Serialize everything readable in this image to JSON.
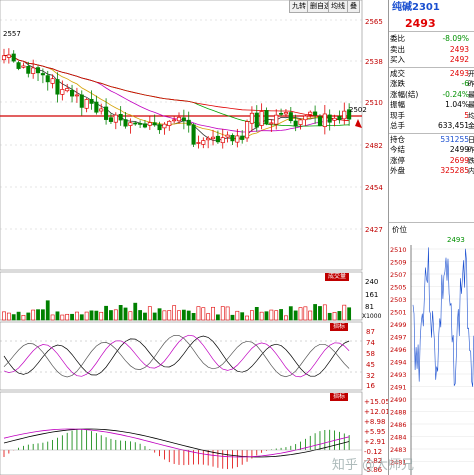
{
  "toolbar": {
    "tabs": [
      {
        "label": "九转"
      },
      {
        "label": "删自选"
      },
      {
        "label": "均线"
      },
      {
        "label": "叠"
      }
    ]
  },
  "main_chart": {
    "high_marker": "2557",
    "ref_price_marker": "2502",
    "price_axis": [
      "2565",
      "2538",
      "2510",
      "2482",
      "2454",
      "2427"
    ]
  },
  "volume_panel": {
    "tag": "成交量",
    "axis": [
      "240",
      "161",
      "81",
      "X1000"
    ]
  },
  "kdj_panel": {
    "tag": "指标",
    "axis": [
      "87",
      "74",
      "58",
      "45",
      "32",
      "16"
    ]
  },
  "macd_panel": {
    "tag": "指标",
    "axis": [
      "+15.05",
      "+12.01",
      "+8.98",
      "+5.95",
      "+2.91",
      "-0.12",
      "-2.82",
      "-5.86"
    ]
  },
  "quote": {
    "title": "纯碱2301",
    "price": "2493",
    "rows": [
      {
        "k": "委比",
        "v": "-8.09%",
        "c": "green",
        "x": ""
      },
      {
        "k": "卖出",
        "v": "2493",
        "c": "red",
        "x": ""
      },
      {
        "k": "买入",
        "v": "2492",
        "c": "red",
        "x": ""
      },
      {
        "k": "成交",
        "v": "2493",
        "c": "red",
        "x": "开"
      },
      {
        "k": "涨跌",
        "v": "-6",
        "c": "green",
        "x": "昨"
      },
      {
        "k": "涨幅(结)",
        "v": "-0.24%",
        "c": "green",
        "x": "最"
      },
      {
        "k": "振幅",
        "v": "1.04%",
        "c": "black",
        "x": "最"
      },
      {
        "k": "现手",
        "v": "5",
        "c": "red",
        "x": "均"
      },
      {
        "k": "总手",
        "v": "633,451",
        "c": "black",
        "x": "金"
      },
      {
        "k": "持仓",
        "v": "531255",
        "c": "blue",
        "x": "日"
      },
      {
        "k": "今结",
        "v": "2499",
        "c": "black",
        "x": "昨"
      },
      {
        "k": "涨停",
        "v": "2699",
        "c": "red",
        "x": "跌"
      },
      {
        "k": "外盘",
        "v": "325285",
        "c": "red",
        "x": "内"
      }
    ],
    "mini_label": "价位",
    "mini_price": "2493",
    "mini_axis": [
      "2510",
      "2509",
      "2507",
      "2505",
      "2503",
      "2501",
      "2499",
      "2497",
      "2496",
      "2494",
      "2493",
      "2491",
      "2490",
      "2488",
      "2486",
      "2484",
      "2483",
      "2481"
    ]
  },
  "watermark": "知乎 @大师兄"
}
